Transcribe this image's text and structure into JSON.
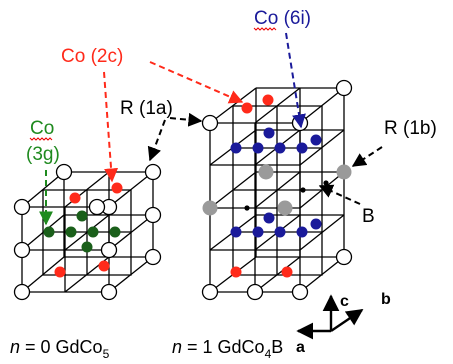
{
  "colors": {
    "co_2c": "#ff2a1a",
    "co_6i": "#1a1a9a",
    "co_3g": "#1a5f1a",
    "co_3g_label": "#1f8a1f",
    "r_site_fill": "#ffffff",
    "b_site": "#9a9a9a",
    "b_atom": "#000000",
    "lines": "#000000"
  },
  "labels": {
    "co_2c": "Co (2c)",
    "co_6i": "Co (6i)",
    "co_3g_line1": "Co",
    "co_3g_line2": "(3g)",
    "r_1a": "R (1a)",
    "r_1b": "R (1b)",
    "b": "B"
  },
  "captions": {
    "left": {
      "n_symbol": "n",
      "eq": " = 0  GdCo",
      "sub": "5",
      "tail": ""
    },
    "right": {
      "n_symbol": "n",
      "eq": " = 1  GdCo",
      "sub": "4",
      "tail": "B"
    }
  },
  "axes": {
    "a": "a",
    "b": "b",
    "c": "c"
  }
}
